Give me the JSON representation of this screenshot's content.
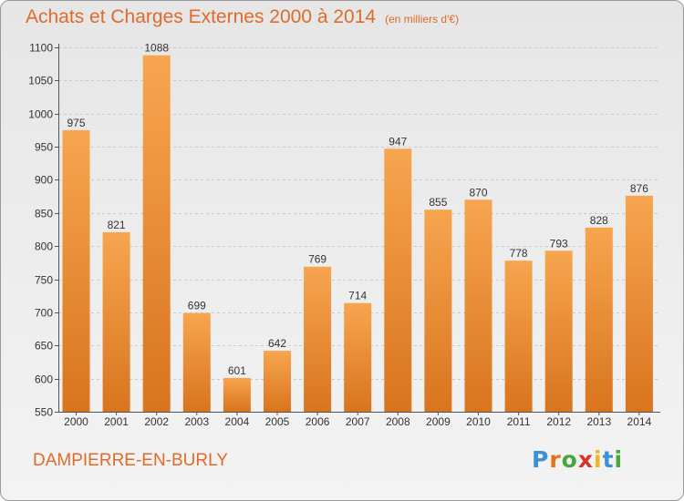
{
  "header": {
    "title": "Achats et Charges Externes 2000 à 2014",
    "unit": "(en milliers d'€)"
  },
  "footer": {
    "commune": "DAMPIERRE-EN-BURLY",
    "logo_letters": [
      "P",
      "r",
      "o",
      "x",
      "i",
      "t",
      "i"
    ],
    "logo_colors": [
      "#3d8fd6",
      "#e8721c",
      "#43a93a",
      "#d8342c",
      "#f0b51a",
      "#3d8fd6",
      "#43a93a"
    ]
  },
  "colors": {
    "bar_light": "#f7a54f",
    "bar_dark": "#d9741e",
    "accent": "#e06a2a",
    "axis": "#555555",
    "grid": "#c8c8c8"
  },
  "chart_data": {
    "type": "bar",
    "title": "Achats et Charges Externes 2000 à 2014",
    "categories": [
      "2000",
      "2001",
      "2002",
      "2003",
      "2004",
      "2005",
      "2006",
      "2007",
      "2008",
      "2009",
      "2010",
      "2011",
      "2012",
      "2013",
      "2014"
    ],
    "values": [
      975,
      821,
      1088,
      699,
      601,
      642,
      769,
      714,
      947,
      855,
      870,
      778,
      793,
      828,
      876
    ],
    "xlabel": "",
    "ylabel": "",
    "ylim": [
      550,
      1100
    ],
    "yticks": [
      550,
      600,
      650,
      700,
      750,
      800,
      850,
      900,
      950,
      1000,
      1050,
      1100
    ],
    "grid": true,
    "data_labels": true
  }
}
